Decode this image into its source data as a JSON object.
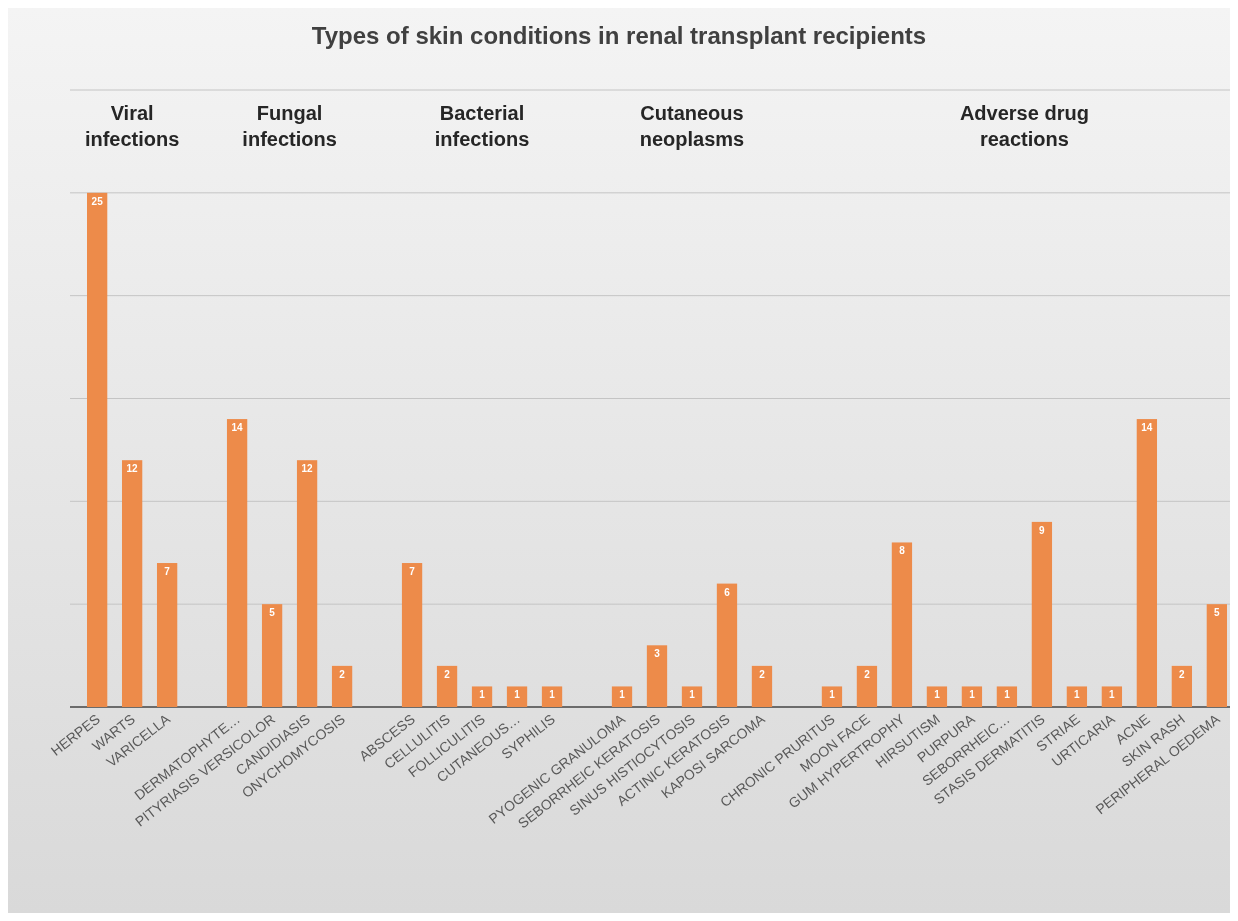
{
  "chart_data": {
    "type": "bar",
    "title": "Types of skin conditions in renal transplant recipients",
    "categories": [
      "HERPES",
      "WARTS",
      "VARICELLA",
      null,
      "DERMATOPHYTE…",
      "PITYRIASIS VERSICOLOR",
      "CANDIDIASIS",
      "ONYCHOMYCOSIS",
      null,
      "ABSCESS",
      "CELLULITIS",
      "FOLLICULITIS",
      "CUTANEOUS…",
      "SYPHILIS",
      null,
      "PYOGENIC GRANULOMA",
      "SEBORRHEIC KERATOSIS",
      "SINUS HISTIOCYTOSIS",
      "ACTINIC KERATOSIS",
      "KAPOSI SARCOMA",
      null,
      "CHRONIC PRURITUS",
      "MOON FACE",
      "GUM HYPERTROPHY",
      "HIRSUTISM",
      "PURPURA",
      "SEBORRHEIC…",
      "STASIS DERMATITIS",
      "STRIAE",
      "URTICARIA",
      "ACNE",
      "SKIN RASH",
      "PERIPHERAL OEDEMA"
    ],
    "values": [
      25,
      12,
      7,
      null,
      14,
      5,
      12,
      2,
      null,
      7,
      2,
      1,
      1,
      1,
      null,
      1,
      3,
      1,
      6,
      2,
      null,
      1,
      2,
      8,
      1,
      1,
      1,
      9,
      1,
      1,
      14,
      2,
      5
    ],
    "color": "#ed8b4a",
    "data_labels": true,
    "ylim": [
      0,
      30
    ],
    "yticks": [
      {
        "value": 0,
        "label": null
      },
      {
        "value": 5,
        "label": null
      },
      {
        "value": 10,
        "label": null
      },
      {
        "value": 15,
        "label": null
      },
      {
        "value": 20,
        "label": null
      },
      {
        "value": 25,
        "label": null
      },
      {
        "value": 30,
        "label": null
      }
    ],
    "tick_labels": "x",
    "grid": "y",
    "annotations": [
      "Viral infections",
      "Fungal infections",
      "Bacterial infections",
      "Cutaneous neoplasms",
      "Adverse drug reactions"
    ]
  }
}
